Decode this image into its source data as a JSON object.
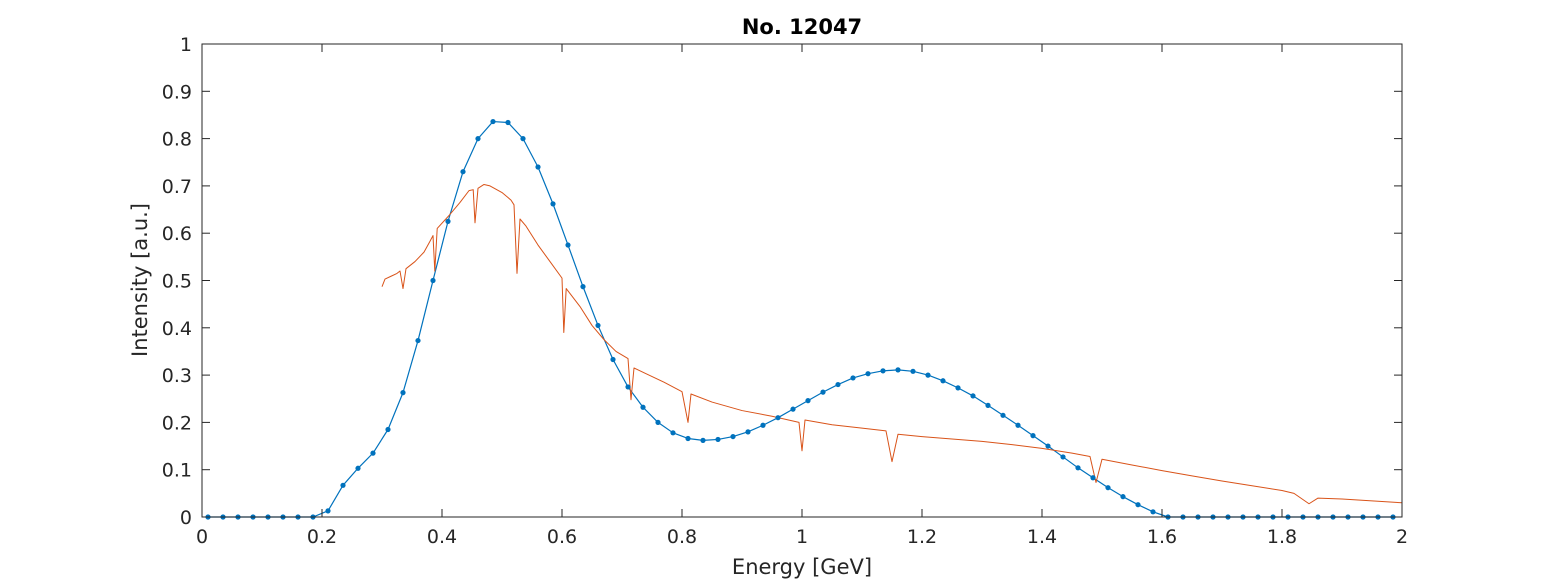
{
  "chart_data": {
    "type": "line",
    "title": "No. 12047",
    "xlabel": "Energy [GeV]",
    "ylabel": "Intensity [a.u.]",
    "xlim": [
      0,
      2
    ],
    "ylim": [
      0,
      1
    ],
    "xticks": [
      0,
      0.2,
      0.4,
      0.6,
      0.8,
      1,
      1.2,
      1.4,
      1.6,
      1.8,
      2
    ],
    "xtick_labels": [
      "0",
      "0.2",
      "0.4",
      "0.6",
      "0.8",
      "1",
      "1.2",
      "1.4",
      "1.6",
      "1.8",
      "2"
    ],
    "yticks": [
      0,
      0.1,
      0.2,
      0.3,
      0.4,
      0.5,
      0.6,
      0.7,
      0.8,
      0.9,
      1
    ],
    "ytick_labels": [
      "0",
      "0.1",
      "0.2",
      "0.3",
      "0.4",
      "0.5",
      "0.6",
      "0.7",
      "0.8",
      "0.9",
      "1"
    ],
    "grid": false,
    "box": true,
    "series": [
      {
        "color": "#0072BD",
        "marker": "dot",
        "points": [
          [
            0.01,
            0
          ],
          [
            0.035,
            0
          ],
          [
            0.06,
            0
          ],
          [
            0.085,
            0
          ],
          [
            0.11,
            0
          ],
          [
            0.135,
            0
          ],
          [
            0.16,
            0
          ],
          [
            0.185,
            0
          ],
          [
            0.21,
            0.013
          ],
          [
            0.235,
            0.067
          ],
          [
            0.26,
            0.103
          ],
          [
            0.285,
            0.135
          ],
          [
            0.31,
            0.185
          ],
          [
            0.335,
            0.263
          ],
          [
            0.36,
            0.373
          ],
          [
            0.385,
            0.5
          ],
          [
            0.41,
            0.625
          ],
          [
            0.435,
            0.73
          ],
          [
            0.46,
            0.8
          ],
          [
            0.485,
            0.836
          ],
          [
            0.51,
            0.834
          ],
          [
            0.535,
            0.8
          ],
          [
            0.56,
            0.74
          ],
          [
            0.585,
            0.662
          ],
          [
            0.61,
            0.575
          ],
          [
            0.635,
            0.487
          ],
          [
            0.66,
            0.405
          ],
          [
            0.685,
            0.333
          ],
          [
            0.71,
            0.275
          ],
          [
            0.735,
            0.232
          ],
          [
            0.76,
            0.2
          ],
          [
            0.785,
            0.178
          ],
          [
            0.81,
            0.166
          ],
          [
            0.835,
            0.162
          ],
          [
            0.86,
            0.164
          ],
          [
            0.885,
            0.17
          ],
          [
            0.91,
            0.18
          ],
          [
            0.935,
            0.194
          ],
          [
            0.96,
            0.21
          ],
          [
            0.985,
            0.228
          ],
          [
            1.01,
            0.246
          ],
          [
            1.035,
            0.264
          ],
          [
            1.06,
            0.28
          ],
          [
            1.085,
            0.294
          ],
          [
            1.11,
            0.303
          ],
          [
            1.135,
            0.309
          ],
          [
            1.16,
            0.311
          ],
          [
            1.185,
            0.308
          ],
          [
            1.21,
            0.3
          ],
          [
            1.235,
            0.288
          ],
          [
            1.26,
            0.273
          ],
          [
            1.285,
            0.256
          ],
          [
            1.31,
            0.236
          ],
          [
            1.335,
            0.215
          ],
          [
            1.36,
            0.194
          ],
          [
            1.385,
            0.172
          ],
          [
            1.41,
            0.15
          ],
          [
            1.435,
            0.127
          ],
          [
            1.46,
            0.104
          ],
          [
            1.485,
            0.083
          ],
          [
            1.51,
            0.062
          ],
          [
            1.535,
            0.043
          ],
          [
            1.56,
            0.026
          ],
          [
            1.585,
            0.011
          ],
          [
            1.61,
            0
          ],
          [
            1.635,
            0
          ],
          [
            1.66,
            0
          ],
          [
            1.685,
            0
          ],
          [
            1.71,
            0
          ],
          [
            1.735,
            0
          ],
          [
            1.76,
            0
          ],
          [
            1.785,
            0
          ],
          [
            1.81,
            0
          ],
          [
            1.835,
            0
          ],
          [
            1.86,
            0
          ],
          [
            1.885,
            0
          ],
          [
            1.91,
            0
          ],
          [
            1.935,
            0
          ],
          [
            1.96,
            0
          ],
          [
            1.985,
            0
          ]
        ]
      },
      {
        "color": "#D95319",
        "marker": "none",
        "points": [
          [
            0.3,
            0.487
          ],
          [
            0.305,
            0.503
          ],
          [
            0.315,
            0.509
          ],
          [
            0.325,
            0.515
          ],
          [
            0.33,
            0.52
          ],
          [
            0.335,
            0.483
          ],
          [
            0.34,
            0.525
          ],
          [
            0.355,
            0.54
          ],
          [
            0.37,
            0.56
          ],
          [
            0.38,
            0.583
          ],
          [
            0.385,
            0.595
          ],
          [
            0.388,
            0.52
          ],
          [
            0.392,
            0.61
          ],
          [
            0.41,
            0.635
          ],
          [
            0.43,
            0.665
          ],
          [
            0.445,
            0.69
          ],
          [
            0.452,
            0.692
          ],
          [
            0.455,
            0.622
          ],
          [
            0.46,
            0.695
          ],
          [
            0.47,
            0.703
          ],
          [
            0.48,
            0.7
          ],
          [
            0.5,
            0.686
          ],
          [
            0.515,
            0.67
          ],
          [
            0.52,
            0.66
          ],
          [
            0.525,
            0.515
          ],
          [
            0.53,
            0.63
          ],
          [
            0.54,
            0.615
          ],
          [
            0.56,
            0.575
          ],
          [
            0.58,
            0.54
          ],
          [
            0.6,
            0.505
          ],
          [
            0.603,
            0.39
          ],
          [
            0.607,
            0.483
          ],
          [
            0.63,
            0.445
          ],
          [
            0.65,
            0.405
          ],
          [
            0.67,
            0.375
          ],
          [
            0.69,
            0.35
          ],
          [
            0.71,
            0.335
          ],
          [
            0.715,
            0.248
          ],
          [
            0.72,
            0.315
          ],
          [
            0.74,
            0.303
          ],
          [
            0.77,
            0.285
          ],
          [
            0.8,
            0.265
          ],
          [
            0.81,
            0.2
          ],
          [
            0.815,
            0.26
          ],
          [
            0.85,
            0.243
          ],
          [
            0.9,
            0.225
          ],
          [
            0.95,
            0.213
          ],
          [
            0.995,
            0.2
          ],
          [
            1.0,
            0.14
          ],
          [
            1.005,
            0.205
          ],
          [
            1.05,
            0.195
          ],
          [
            1.1,
            0.188
          ],
          [
            1.14,
            0.182
          ],
          [
            1.15,
            0.117
          ],
          [
            1.16,
            0.175
          ],
          [
            1.2,
            0.17
          ],
          [
            1.25,
            0.165
          ],
          [
            1.3,
            0.16
          ],
          [
            1.35,
            0.153
          ],
          [
            1.4,
            0.145
          ],
          [
            1.45,
            0.135
          ],
          [
            1.48,
            0.128
          ],
          [
            1.49,
            0.073
          ],
          [
            1.5,
            0.122
          ],
          [
            1.55,
            0.11
          ],
          [
            1.6,
            0.098
          ],
          [
            1.65,
            0.087
          ],
          [
            1.7,
            0.076
          ],
          [
            1.75,
            0.066
          ],
          [
            1.8,
            0.056
          ],
          [
            1.82,
            0.05
          ],
          [
            1.845,
            0.028
          ],
          [
            1.86,
            0.04
          ],
          [
            1.9,
            0.038
          ],
          [
            1.95,
            0.034
          ],
          [
            2.0,
            0.03
          ]
        ]
      }
    ]
  }
}
